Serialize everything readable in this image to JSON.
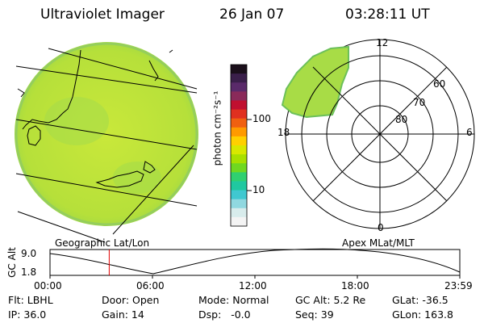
{
  "header": {
    "instrument": "Ultraviolet Imager",
    "date": "26 Jan 07",
    "time": "03:28:11 UT"
  },
  "colorbar": {
    "unit": "photon cm⁻²s⁻¹",
    "ticks": [
      "100",
      "10"
    ],
    "colors": [
      "#1a0f1a",
      "#3a1f4a",
      "#5a2a6a",
      "#8a2a5a",
      "#c01030",
      "#e03020",
      "#f06010",
      "#ff9a00",
      "#ffd000",
      "#d8e800",
      "#a8e000",
      "#70d820",
      "#30d070",
      "#20c8a0",
      "#40c8d0",
      "#90d8e0",
      "#d8ecec",
      "#f4f4f4"
    ]
  },
  "left_panel": {
    "caption": "Geographic Lat/Lon"
  },
  "right_panel": {
    "caption": "Apex MLat/MLT",
    "mlt_labels": [
      "12",
      "18",
      "6",
      "0"
    ],
    "mlat_labels": [
      "60",
      "70",
      "80"
    ]
  },
  "timeline": {
    "ylabel": "GC Alt",
    "y_ticks": [
      "9.0",
      "1.8"
    ],
    "x_ticks": [
      "00:00",
      "06:00",
      "12:00",
      "18:00",
      "23:59"
    ],
    "marker_time": "03:28",
    "marker_color": "#e00000"
  },
  "info": {
    "flt": "Flt: LBHL",
    "ip": "IP: 36.0",
    "door": "Door: Open",
    "gain": "Gain: 14",
    "mode": "Mode: Normal",
    "dsp": "Dsp:   -0.0",
    "gcalt": "GC Alt: 5.2 Re",
    "seq": "Seq: 39",
    "glat": "GLat: -36.5",
    "glon": "GLon: 163.8"
  }
}
